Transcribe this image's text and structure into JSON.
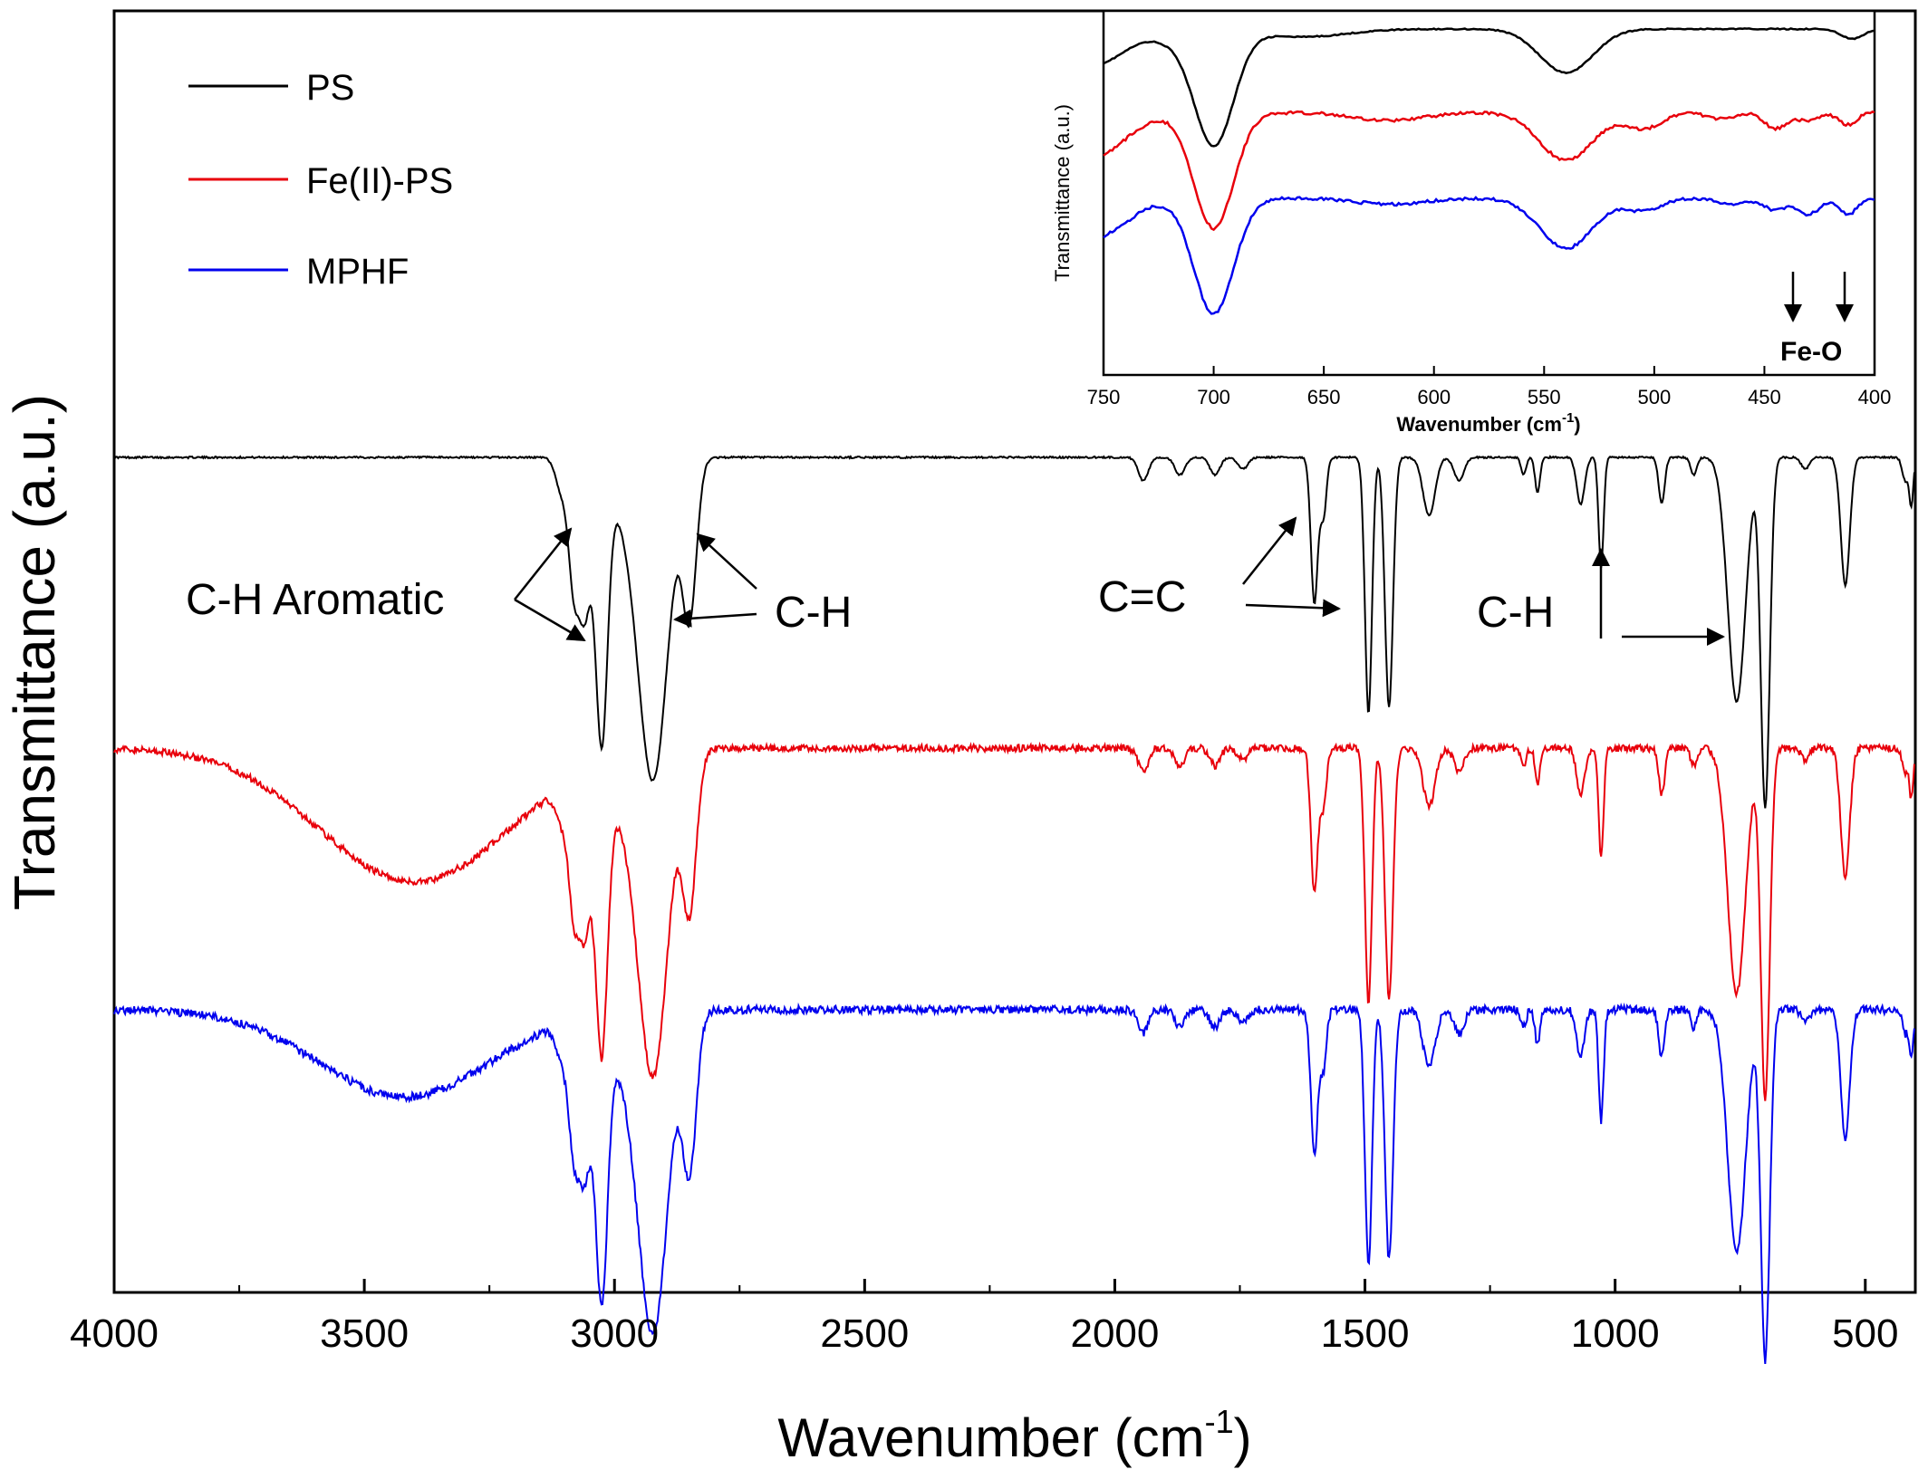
{
  "colors": {
    "PS": "#000000",
    "FeII_PS": "#e8000b",
    "MPHF": "#0000ee"
  },
  "chart_data": [
    {
      "type": "line",
      "title": "",
      "xlabel_main": "Wavenumber (cm",
      "xlabel_sup": "-1",
      "xlabel_close": ")",
      "ylabel": "Transmittance (a.u.)",
      "xlim": [
        4000,
        400
      ],
      "x_ticks": [
        4000,
        3500,
        3000,
        2500,
        2000,
        1500,
        1000,
        500
      ],
      "x_tick_labels": [
        "4000",
        "3500",
        "3000",
        "2500",
        "2000",
        "1500",
        "1000",
        "500"
      ],
      "y_ticks_shown": false,
      "legend": {
        "placement": "top-left",
        "entries": [
          {
            "name": "PS",
            "color": "#000000"
          },
          {
            "name": "Fe(II)-PS",
            "color": "#e8000b"
          },
          {
            "name": "MPHF",
            "color": "#0000ee"
          }
        ]
      },
      "series": [
        {
          "name": "PS",
          "color": "#000000",
          "baseline": 100,
          "noise": 0.3,
          "features": [
            [
              3105,
              6,
              12
            ],
            [
              3082,
              19,
              10
            ],
            [
              3060,
              26,
              12
            ],
            [
              3026,
              46,
              12
            ],
            [
              2990,
              7,
              30
            ],
            [
              2923,
              55,
              30
            ],
            [
              2850,
              26,
              14
            ],
            [
              1943,
              4,
              10
            ],
            [
              1870,
              3,
              10
            ],
            [
              1800,
              3,
              10
            ],
            [
              1744,
              2,
              10
            ],
            [
              1601,
              25,
              7
            ],
            [
              1583,
              10,
              6
            ],
            [
              1493,
              44,
              7
            ],
            [
              1452,
              43,
              8
            ],
            [
              1372,
              10,
              12
            ],
            [
              1312,
              4,
              10
            ],
            [
              1183,
              3,
              5
            ],
            [
              1155,
              6,
              5
            ],
            [
              1069,
              8,
              8
            ],
            [
              1028,
              19,
              5
            ],
            [
              907,
              8,
              6
            ],
            [
              843,
              3,
              6
            ],
            [
              757,
              42,
              18
            ],
            [
              700,
              60,
              9
            ],
            [
              620,
              2,
              8
            ],
            [
              540,
              22,
              9
            ],
            [
              420,
              4,
              6
            ],
            [
              408,
              8,
              4
            ]
          ]
        },
        {
          "name": "Fe(II)-PS",
          "color": "#e8000b",
          "baseline": 50,
          "noise": 1.2,
          "features": [
            [
              3400,
              23,
              190
            ],
            [
              3105,
              6,
              12
            ],
            [
              3082,
              19,
              10
            ],
            [
              3060,
              26,
              12
            ],
            [
              3026,
              46,
              12
            ],
            [
              2990,
              7,
              30
            ],
            [
              2923,
              55,
              30
            ],
            [
              2850,
              26,
              14
            ],
            [
              1943,
              4,
              10
            ],
            [
              1870,
              3,
              10
            ],
            [
              1800,
              3,
              10
            ],
            [
              1744,
              2,
              10
            ],
            [
              1601,
              25,
              7
            ],
            [
              1583,
              10,
              6
            ],
            [
              1493,
              44,
              7
            ],
            [
              1452,
              43,
              8
            ],
            [
              1372,
              10,
              12
            ],
            [
              1312,
              4,
              10
            ],
            [
              1183,
              3,
              5
            ],
            [
              1155,
              6,
              5
            ],
            [
              1069,
              8,
              8
            ],
            [
              1028,
              19,
              5
            ],
            [
              907,
              8,
              6
            ],
            [
              843,
              3,
              6
            ],
            [
              757,
              42,
              18
            ],
            [
              700,
              60,
              9
            ],
            [
              620,
              2,
              8
            ],
            [
              540,
              22,
              9
            ],
            [
              420,
              4,
              6
            ],
            [
              408,
              8,
              4
            ]
          ]
        },
        {
          "name": "MPHF",
          "color": "#0000ee",
          "baseline": 5,
          "noise": 1.4,
          "features": [
            [
              3420,
              15,
              170
            ],
            [
              3105,
              6,
              12
            ],
            [
              3082,
              19,
              10
            ],
            [
              3060,
              26,
              12
            ],
            [
              3026,
              46,
              12
            ],
            [
              2990,
              7,
              30
            ],
            [
              2923,
              55,
              30
            ],
            [
              2850,
              26,
              14
            ],
            [
              1943,
              4,
              10
            ],
            [
              1870,
              3,
              10
            ],
            [
              1800,
              3,
              10
            ],
            [
              1744,
              2,
              10
            ],
            [
              1601,
              25,
              7
            ],
            [
              1583,
              10,
              6
            ],
            [
              1493,
              44,
              7
            ],
            [
              1452,
              43,
              8
            ],
            [
              1372,
              10,
              12
            ],
            [
              1312,
              4,
              10
            ],
            [
              1183,
              3,
              5
            ],
            [
              1155,
              6,
              5
            ],
            [
              1069,
              8,
              8
            ],
            [
              1028,
              19,
              5
            ],
            [
              907,
              8,
              6
            ],
            [
              843,
              3,
              6
            ],
            [
              757,
              42,
              18
            ],
            [
              700,
              60,
              9
            ],
            [
              620,
              2,
              8
            ],
            [
              540,
              22,
              9
            ],
            [
              420,
              4,
              6
            ],
            [
              408,
              8,
              4
            ]
          ]
        }
      ],
      "annotations": [
        "C-H Aromatic",
        "C-H",
        "C=C",
        "C-H"
      ]
    },
    {
      "type": "line",
      "title": "",
      "xlabel_main": "Wavenumber (cm",
      "xlabel_sup": "-1",
      "xlabel_close": ")",
      "ylabel": "Transmittance (a.u.)",
      "xlim": [
        750,
        400
      ],
      "x_ticks": [
        750,
        700,
        650,
        600,
        550,
        500,
        450,
        400
      ],
      "x_tick_labels": [
        "750",
        "700",
        "650",
        "600",
        "550",
        "500",
        "450",
        "400"
      ],
      "series": [
        {
          "name": "PS",
          "color": "#000000",
          "baseline": 100,
          "noise": 0.6,
          "features": [
            [
              755,
              18,
              15
            ],
            [
              700,
              58,
              9
            ],
            [
              720,
              4,
              8
            ],
            [
              660,
              4,
              20
            ],
            [
              540,
              22,
              12
            ],
            [
              410,
              5,
              5
            ]
          ]
        },
        {
          "name": "Fe(II)-PS",
          "color": "#e8000b",
          "baseline": 58,
          "noise": 1.5,
          "features": [
            [
              755,
              22,
              15
            ],
            [
              700,
              58,
              9
            ],
            [
              620,
              4,
              15
            ],
            [
              540,
              24,
              12
            ],
            [
              505,
              8,
              8
            ],
            [
              470,
              3,
              6
            ],
            [
              445,
              8,
              5
            ],
            [
              430,
              4,
              5
            ],
            [
              412,
              6,
              4
            ]
          ]
        },
        {
          "name": "MPHF",
          "color": "#0000ee",
          "baseline": 15,
          "noise": 1.5,
          "features": [
            [
              755,
              20,
              15
            ],
            [
              700,
              58,
              9
            ],
            [
              620,
              3,
              15
            ],
            [
              540,
              25,
              12
            ],
            [
              505,
              6,
              8
            ],
            [
              465,
              3,
              6
            ],
            [
              445,
              6,
              5
            ],
            [
              430,
              8,
              5
            ],
            [
              412,
              8,
              4
            ]
          ]
        }
      ],
      "annotation": "Fe-O",
      "annotation_positions": [
        438,
        411
      ]
    }
  ]
}
